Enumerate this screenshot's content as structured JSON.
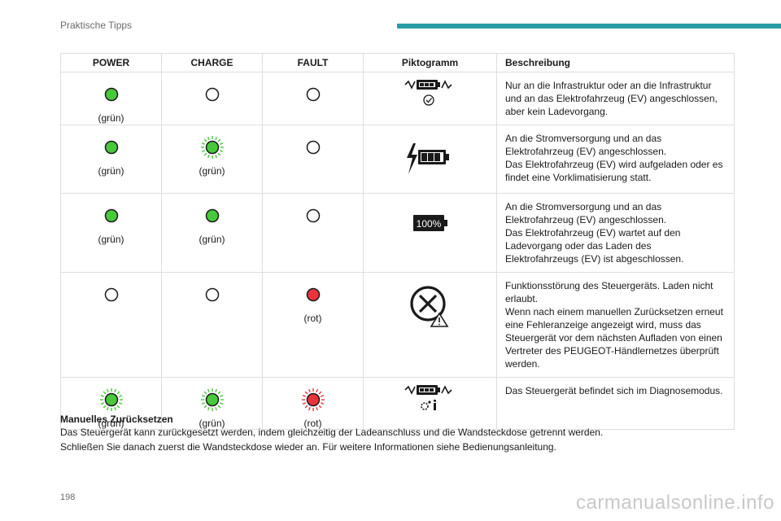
{
  "header": {
    "section": "Praktische Tipps"
  },
  "table": {
    "columns": [
      "POWER",
      "CHARGE",
      "FAULT",
      "Piktogramm",
      "Beschreibung"
    ],
    "rows": [
      {
        "power": {
          "state": "on",
          "color": "#47c93b",
          "label": "(grün)"
        },
        "charge": {
          "state": "off",
          "label": ""
        },
        "fault": {
          "state": "off",
          "label": ""
        },
        "pictogram": "plug-battery-check-icon",
        "description": "Nur an die Infrastruktur oder an die Infrastruktur und an das Elektrofahrzeug (EV) angeschlossen, aber kein Ladevorgang."
      },
      {
        "power": {
          "state": "on",
          "color": "#47c93b",
          "label": "(grün)"
        },
        "charge": {
          "state": "blink",
          "color": "#47c93b",
          "label": "(grün)"
        },
        "fault": {
          "state": "off",
          "label": ""
        },
        "pictogram": "battery-charging-icon",
        "description": "An die Stromversorgung und an das Elektrofahrzeug (EV) angeschlossen.\nDas Elektrofahrzeug (EV) wird aufgeladen oder es findet eine Vorklimatisierung statt."
      },
      {
        "power": {
          "state": "on",
          "color": "#47c93b",
          "label": "(grün)"
        },
        "charge": {
          "state": "on",
          "color": "#47c93b",
          "label": "(grün)"
        },
        "fault": {
          "state": "off",
          "label": ""
        },
        "pictogram": "battery-full-icon",
        "picto_text": "100%",
        "description": "An die Stromversorgung und an das Elektrofahrzeug (EV) angeschlossen.\nDas Elektrofahrzeug (EV) wartet auf den Ladevorgang oder das Laden des Elektrofahrzeugs (EV) ist abgeschlossen."
      },
      {
        "power": {
          "state": "off",
          "label": ""
        },
        "charge": {
          "state": "off",
          "label": ""
        },
        "fault": {
          "state": "on",
          "color": "#e8343c",
          "label": "(rot)"
        },
        "pictogram": "fault-warning-icon",
        "description": "Funktionsstörung des Steuergeräts. Laden nicht erlaubt.\nWenn nach einem manuellen Zurücksetzen erneut eine Fehleranzeige angezeigt wird, muss das Steuergerät vor dem nächsten Aufladen von einen Vertreter des PEUGEOT-Händlernetzes überprüft werden."
      },
      {
        "power": {
          "state": "blink",
          "color": "#47c93b",
          "label": "(grün)"
        },
        "charge": {
          "state": "blink",
          "color": "#47c93b",
          "label": "(grün)"
        },
        "fault": {
          "state": "blink",
          "color": "#e8343c",
          "label": "(rot)"
        },
        "pictogram": "plug-battery-diagnostic-icon",
        "description": "Das Steuergerät befindet sich im Diagnosemodus."
      }
    ]
  },
  "reset": {
    "title": "Manuelles Zurücksetzen",
    "line1": "Das Steuergerät kann zurückgesetzt werden, indem gleichzeitig der Ladeanschluss und die Wandsteckdose getrennt werden.",
    "line2": "Schließen Sie danach zuerst die Wandsteckdose wieder an. Für weitere Informationen siehe Bedienungsanleitung."
  },
  "page_number": "198",
  "watermark": "carmanualsonline.info"
}
